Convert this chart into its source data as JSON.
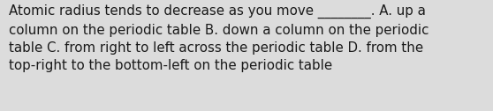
{
  "text": "Atomic radius tends to decrease as you move ________. A. up a\ncolumn on the periodic table B. down a column on the periodic\ntable C. from right to left across the periodic table D. from the\ntop-right to the bottom-left on the periodic table",
  "background_color": "#dcdcdc",
  "text_color": "#1a1a1a",
  "font_size": 10.8,
  "fig_width": 5.58,
  "fig_height": 1.26,
  "dpi": 100
}
